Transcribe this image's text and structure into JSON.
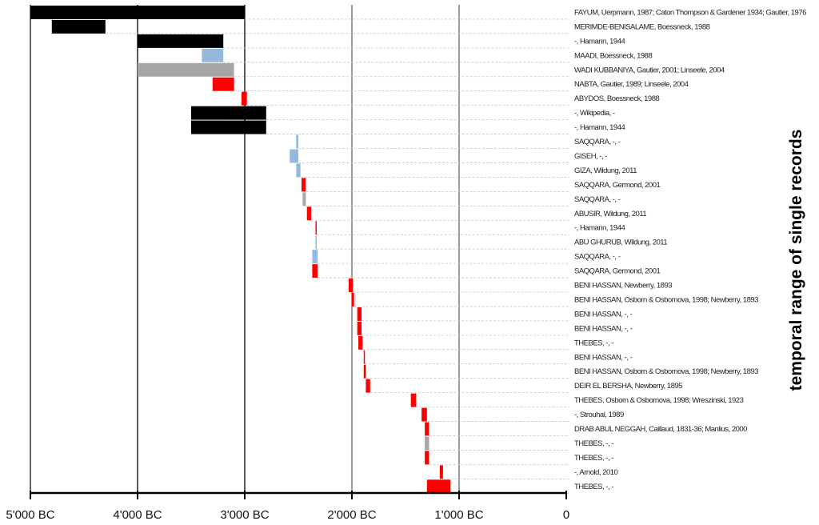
{
  "colors": {
    "black": "#000000",
    "blue": "#94b9dd",
    "gray": "#a6a6a6",
    "red": "#ff0000"
  },
  "chart_data": {
    "type": "bar",
    "orientation": "horizontal-range",
    "ylabel": "temporal range of single records",
    "xlim": [
      -5000,
      0
    ],
    "ticks": [
      {
        "value": -5000,
        "label": "5'000 BC"
      },
      {
        "value": -4000,
        "label": "4'000 BC"
      },
      {
        "value": -3000,
        "label": "3'000 BC"
      },
      {
        "value": -2000,
        "label": "2'000 BC"
      },
      {
        "value": -1000,
        "label": "1'000 BC"
      },
      {
        "value": 0,
        "label": "0"
      }
    ],
    "records": [
      {
        "label": "FAYUM, Uerpmann, 1987; Caton Thompson & Gardener 1934; Gautier, 1976",
        "start": -5000,
        "end": -3000,
        "color": "black"
      },
      {
        "label": "MERIMDE-BENISALAME, Boessneck, 1988",
        "start": -4800,
        "end": -4300,
        "color": "black"
      },
      {
        "label": "-, Hamann, 1944",
        "start": -4000,
        "end": -3200,
        "color": "black"
      },
      {
        "label": "MAADI, Boessneck, 1988",
        "start": -3400,
        "end": -3200,
        "color": "blue"
      },
      {
        "label": "WADI KUBBANIYA, Gautier, 2001; Linseele, 2004",
        "start": -4000,
        "end": -3100,
        "color": "gray"
      },
      {
        "label": "NABTA, Gautier, 1989; Linseele, 2004",
        "start": -3300,
        "end": -3100,
        "color": "red"
      },
      {
        "label": "ABYDOS, Boessneck, 1988",
        "start": -3030,
        "end": -2980,
        "color": "red"
      },
      {
        "label": "-, Wikipedia, -",
        "start": -3500,
        "end": -2800,
        "color": "black"
      },
      {
        "label": "-, Hamann, 1944",
        "start": -3500,
        "end": -2800,
        "color": "black"
      },
      {
        "label": "SAQQARA, -, -",
        "start": -2520,
        "end": -2500,
        "color": "blue"
      },
      {
        "label": "GISEH, -, -",
        "start": -2580,
        "end": -2500,
        "color": "blue"
      },
      {
        "label": "GIZA, Wildung, 2011",
        "start": -2520,
        "end": -2480,
        "color": "blue"
      },
      {
        "label": "SAQQARA, Germond, 2001",
        "start": -2470,
        "end": -2430,
        "color": "red"
      },
      {
        "label": "SAQQARA, -, -",
        "start": -2460,
        "end": -2430,
        "color": "gray"
      },
      {
        "label": "ABUSIR, Wildung, 2011",
        "start": -2420,
        "end": -2380,
        "color": "red"
      },
      {
        "label": "-, Hamann, 1944",
        "start": -2340,
        "end": -2330,
        "color": "red"
      },
      {
        "label": "ABU GHURUB, Wildung, 2011",
        "start": -2340,
        "end": -2330,
        "color": "blue"
      },
      {
        "label": "SAQQARA, -, -",
        "start": -2370,
        "end": -2320,
        "color": "blue"
      },
      {
        "label": "SAQQARA, Germond, 2001",
        "start": -2370,
        "end": -2320,
        "color": "red"
      },
      {
        "label": "BENI HASSAN, Newberry, 1893",
        "start": -2030,
        "end": -1990,
        "color": "red"
      },
      {
        "label": "BENI HASSAN, Osborn & Osbornova, 1998; Newberry, 1893",
        "start": -2000,
        "end": -1980,
        "color": "red"
      },
      {
        "label": "BENI HASSAN, -, -",
        "start": -1950,
        "end": -1910,
        "color": "red"
      },
      {
        "label": "BENI HASSAN, -, -",
        "start": -1950,
        "end": -1910,
        "color": "red"
      },
      {
        "label": "THEBES, -, -",
        "start": -1940,
        "end": -1900,
        "color": "red"
      },
      {
        "label": "BENI HASSAN, -, -",
        "start": -1890,
        "end": -1880,
        "color": "red"
      },
      {
        "label": "BENI HASSAN, Osborn & Osbornova, 1998; Newberry, 1893",
        "start": -1890,
        "end": -1870,
        "color": "red"
      },
      {
        "label": "DEIR EL BERSHA, Newberry, 1895",
        "start": -1870,
        "end": -1830,
        "color": "red"
      },
      {
        "label": "THEBES, Osborn & Osbornova, 1998; Wreszinski, 1923",
        "start": -1450,
        "end": -1400,
        "color": "red"
      },
      {
        "label": "-, Strouhal, 1989",
        "start": -1350,
        "end": -1300,
        "color": "red"
      },
      {
        "label": "DRAB ABUL NEGGAH, Caillaud, 1831-36; Manlius, 2000",
        "start": -1320,
        "end": -1280,
        "color": "red"
      },
      {
        "label": "THEBES, -, -",
        "start": -1320,
        "end": -1280,
        "color": "gray"
      },
      {
        "label": "THEBES, -, -",
        "start": -1320,
        "end": -1280,
        "color": "red"
      },
      {
        "label": "-, Arnold, 2010",
        "start": -1180,
        "end": -1150,
        "color": "red"
      },
      {
        "label": "THEBES, -, -",
        "start": -1300,
        "end": -1080,
        "color": "red"
      }
    ]
  }
}
